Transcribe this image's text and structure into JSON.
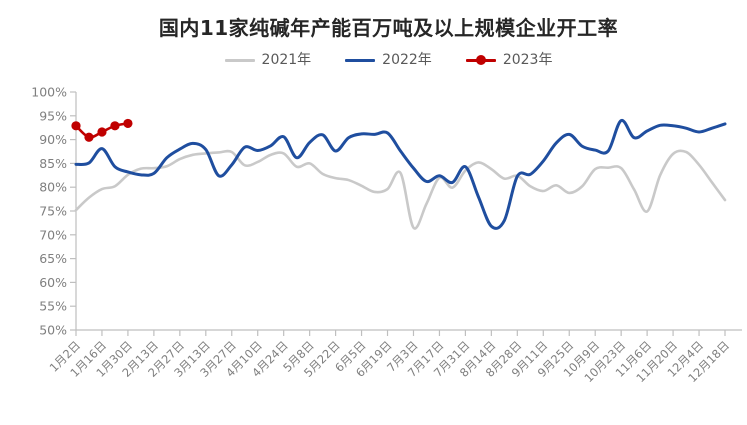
{
  "title": "国内11家纯碱年产能百万吨及以上规模企业开工率",
  "chart_data": {
    "type": "line",
    "title": "国内11家纯碱年产能百万吨及以上规模企业开工率",
    "xlabel": "",
    "ylabel": "",
    "ylim": [
      50,
      100
    ],
    "y_tick_labels": [
      "50%",
      "55%",
      "60%",
      "65%",
      "70%",
      "75%",
      "80%",
      "85%",
      "90%",
      "95%",
      "100%"
    ],
    "x_tick_labels": [
      "1月2日",
      "1月16日",
      "1月30日",
      "2月13日",
      "2月27日",
      "3月13日",
      "3月27日",
      "4月10日",
      "4月24日",
      "5月8日",
      "5月22日",
      "6月5日",
      "6月19日",
      "7月3日",
      "7月17日",
      "7月31日",
      "8月14日",
      "8月28日",
      "9月11日",
      "9月25日",
      "10月9日",
      "10月23日",
      "11月6日",
      "11月20日",
      "12月4日",
      "12月18日"
    ],
    "points_per_label": 2,
    "grid": false,
    "legend_position": "top",
    "line_smoothing": true,
    "style": {
      "axis_color": "#BFBFBF",
      "tick_color": "#BFBFBF",
      "axis_label_color": "#7F7F7F",
      "title_color": "#262626",
      "legend_text_color": "#595959",
      "background": "#FFFFFF"
    },
    "series": [
      {
        "name": "2021年",
        "color": "#C9C9C9",
        "marker": false,
        "values": [
          75.2,
          77.8,
          79.6,
          80.2,
          82.6,
          83.9,
          84.0,
          84.4,
          85.9,
          86.8,
          87.1,
          87.3,
          87.4,
          84.6,
          85.3,
          86.8,
          87.1,
          84.3,
          85.0,
          82.8,
          81.9,
          81.5,
          80.3,
          79.0,
          79.6,
          83.0,
          71.5,
          76.5,
          82.0,
          79.9,
          83.5,
          85.2,
          83.8,
          81.8,
          82.4,
          80.2,
          79.2,
          80.4,
          78.8,
          80.2,
          83.8,
          84.1,
          84.0,
          79.5,
          74.9,
          82.5,
          87.0,
          87.4,
          84.7,
          81.0,
          77.3
        ]
      },
      {
        "name": "2022年",
        "color": "#1F4E9F",
        "marker": false,
        "values": [
          84.8,
          85.1,
          88.1,
          84.3,
          83.2,
          82.6,
          82.9,
          86.2,
          88.0,
          89.2,
          87.9,
          82.4,
          84.7,
          88.4,
          87.7,
          88.7,
          90.6,
          86.2,
          89.4,
          91.0,
          87.6,
          90.4,
          91.2,
          91.1,
          91.4,
          87.6,
          84.0,
          81.2,
          82.4,
          81.0,
          84.3,
          78.0,
          71.8,
          73.0,
          82.3,
          82.7,
          85.5,
          89.3,
          91.1,
          88.6,
          87.8,
          87.6,
          94.0,
          90.4,
          91.8,
          93.0,
          92.9,
          92.4,
          91.6,
          92.4,
          93.3
        ]
      },
      {
        "name": "2023年",
        "color": "#C00000",
        "marker": true,
        "values": [
          92.9,
          90.5,
          91.6,
          92.9,
          93.4
        ]
      }
    ]
  }
}
